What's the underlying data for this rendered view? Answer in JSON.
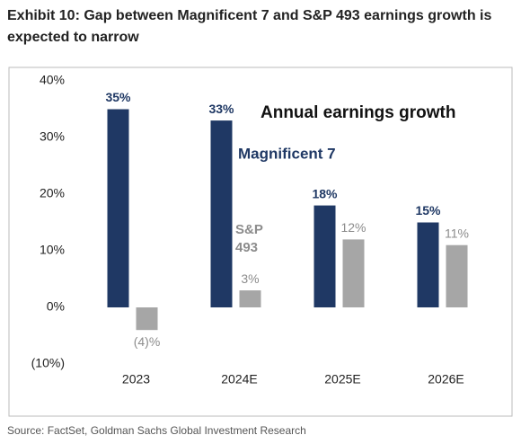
{
  "chart_data": {
    "type": "bar",
    "title": "Exhibit 10: Gap between Magnificent 7 and S&P 493 earnings growth is expected to narrow",
    "annotation": "Annual earnings growth",
    "source": "Source: FactSet, Goldman Sachs Global Investment Research",
    "categories": [
      "2023",
      "2024E",
      "2025E",
      "2026E"
    ],
    "series": [
      {
        "name": "Magnificent 7",
        "color": "#1f3864",
        "values": [
          35,
          33,
          18,
          15
        ],
        "value_labels": [
          "35%",
          "33%",
          "18%",
          "15%"
        ]
      },
      {
        "name": "S&P 493",
        "color": "#a6a6a6",
        "values": [
          -4,
          3,
          12,
          11
        ],
        "value_labels": [
          "(4)%",
          "3%",
          "12%",
          "11%"
        ]
      }
    ],
    "ylim": [
      -10,
      40
    ],
    "yticks": [
      {
        "value": -10,
        "label": "(10%)"
      },
      {
        "value": 0,
        "label": "0%"
      },
      {
        "value": 10,
        "label": "10%"
      },
      {
        "value": 20,
        "label": "20%"
      },
      {
        "value": 30,
        "label": "30%"
      },
      {
        "value": 40,
        "label": "40%"
      }
    ]
  }
}
